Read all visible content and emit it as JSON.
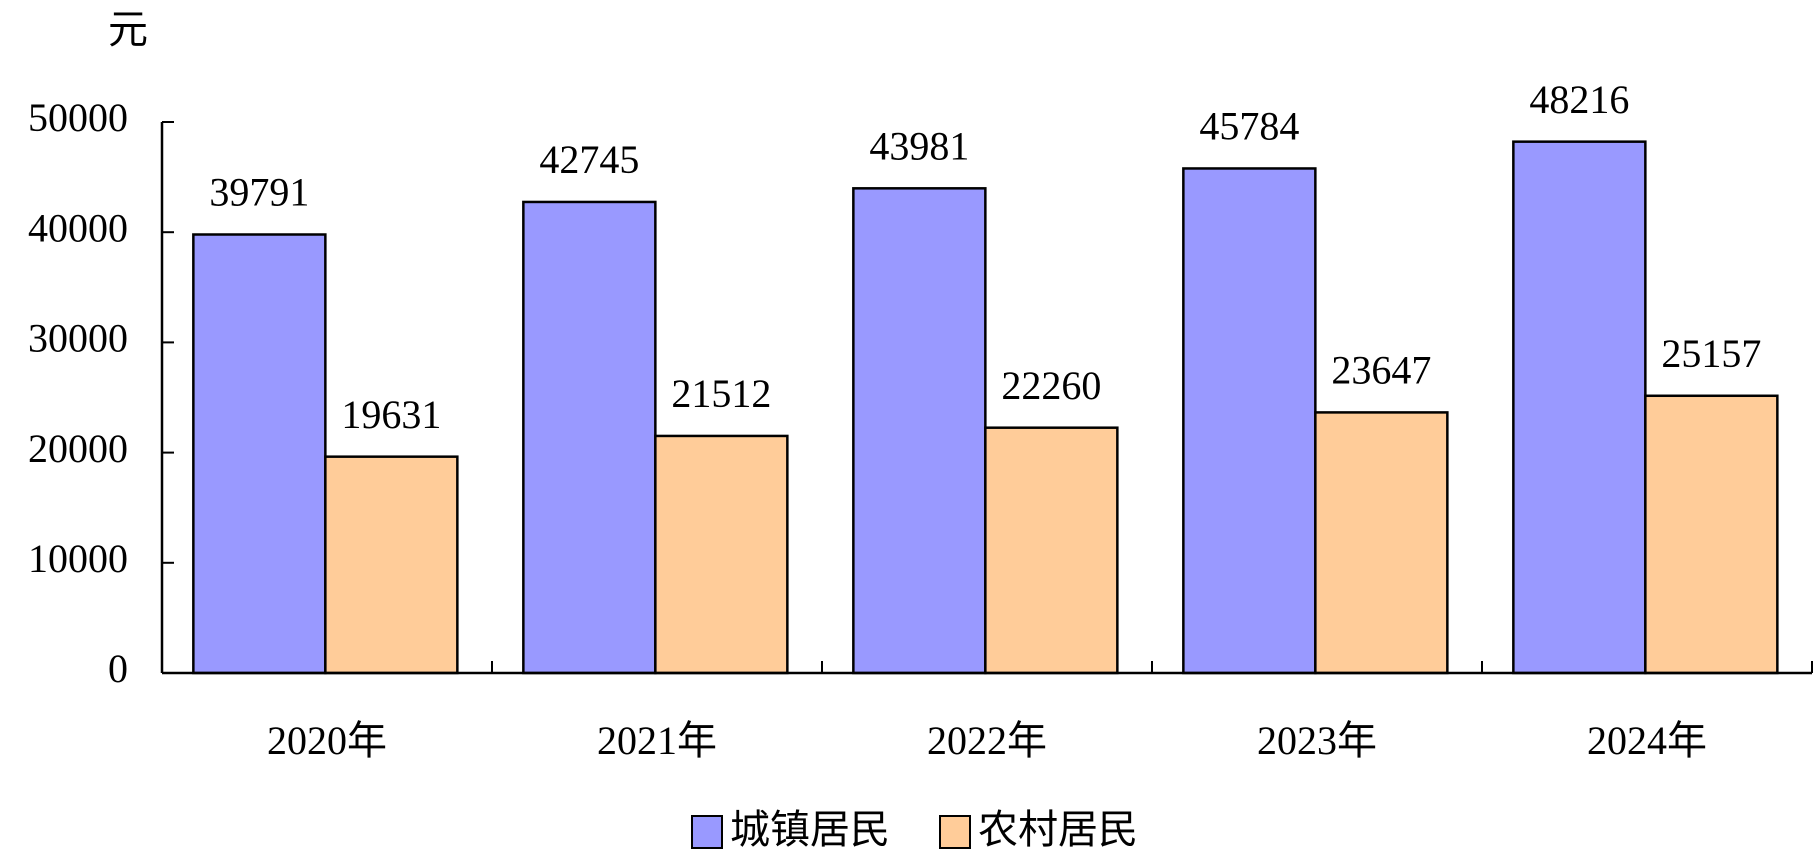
{
  "chart_data": {
    "type": "bar",
    "y_label": "元",
    "categories": [
      "2020年",
      "2021年",
      "2022年",
      "2023年",
      "2024年"
    ],
    "series": [
      {
        "name": "城镇居民",
        "color": "#9999ff",
        "values": [
          39791,
          42745,
          43981,
          45784,
          48216
        ]
      },
      {
        "name": "农村居民",
        "color": "#ffcc99",
        "values": [
          19631,
          21512,
          22260,
          23647,
          25157
        ]
      }
    ],
    "ylim": [
      0,
      50000
    ],
    "yticks": [
      0,
      10000,
      20000,
      30000,
      40000,
      50000
    ],
    "grid": false,
    "legend": "bottom"
  }
}
